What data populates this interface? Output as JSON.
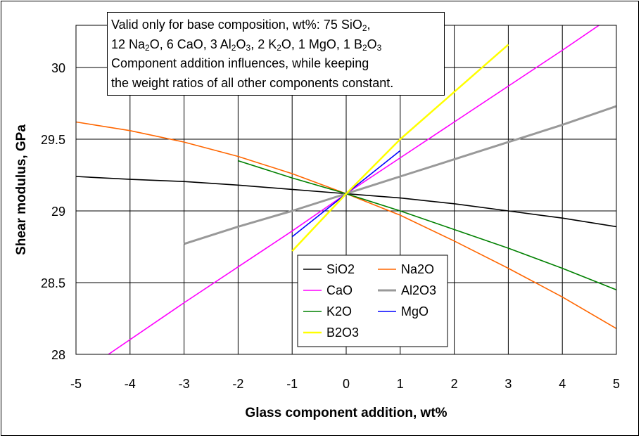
{
  "chart_data": {
    "type": "line",
    "xlabel": "Glass component addition, wt%",
    "ylabel": "Shear modulus, GPa",
    "xlim": [
      -5,
      5
    ],
    "ylim": [
      28,
      30.3
    ],
    "x_ticks": [
      "-5",
      "-4",
      "-3",
      "-2",
      "-1",
      "0",
      "1",
      "2",
      "3",
      "4",
      "5"
    ],
    "y_ticks": [
      "28",
      "28.5",
      "29",
      "29.5",
      "30"
    ],
    "grid": true,
    "legend_position": "bottom-center",
    "series": [
      {
        "name": "SiO2",
        "color": "#000000",
        "x": [
          -5,
          -4,
          -3,
          -2,
          -1,
          0,
          1,
          2,
          3,
          4,
          5
        ],
        "y": [
          29.24,
          29.22,
          29.205,
          29.18,
          29.15,
          29.12,
          29.09,
          29.05,
          29.0,
          28.95,
          28.89
        ]
      },
      {
        "name": "Na2O",
        "color": "#ff6600",
        "x": [
          -5,
          -4,
          -3,
          -2,
          -1,
          0,
          1,
          2,
          3,
          4,
          5
        ],
        "y": [
          29.62,
          29.56,
          29.48,
          29.38,
          29.26,
          29.12,
          28.97,
          28.79,
          28.6,
          28.4,
          28.18
        ]
      },
      {
        "name": "CaO",
        "color": "#ff00ff",
        "x": [
          -4.4,
          -3,
          -2,
          -1,
          0,
          1,
          2,
          3,
          4,
          4.7
        ],
        "y": [
          28.0,
          28.36,
          28.61,
          28.86,
          29.12,
          29.37,
          29.62,
          29.87,
          30.12,
          30.3
        ]
      },
      {
        "name": "Al2O3",
        "color": "#999999",
        "x": [
          -3,
          -2,
          -1,
          0,
          1,
          2,
          3,
          4,
          5
        ],
        "y": [
          28.77,
          28.89,
          29.0,
          29.12,
          29.24,
          29.36,
          29.48,
          29.6,
          29.73
        ]
      },
      {
        "name": "K2O",
        "color": "#008000",
        "x": [
          -2,
          -1,
          0,
          1,
          2,
          3,
          4,
          5
        ],
        "y": [
          29.35,
          29.23,
          29.12,
          29.0,
          28.87,
          28.74,
          28.6,
          28.45
        ]
      },
      {
        "name": "MgO",
        "color": "#0000ff",
        "x": [
          -1,
          0,
          1
        ],
        "y": [
          28.82,
          29.12,
          29.42
        ]
      },
      {
        "name": "B2O3",
        "color": "#ffff00",
        "x": [
          -1,
          0,
          1,
          2,
          3
        ],
        "y": [
          28.72,
          29.12,
          29.5,
          29.83,
          30.16
        ]
      }
    ],
    "annotation": {
      "lines": [
        {
          "parts": [
            {
              "t": "Valid only for base composition, wt%: 75 SiO"
            },
            {
              "t": "2",
              "sub": true
            },
            {
              "t": ","
            }
          ]
        },
        {
          "parts": [
            {
              "t": "12 Na"
            },
            {
              "t": "2",
              "sub": true
            },
            {
              "t": "O, 6 CaO, 3 Al"
            },
            {
              "t": "2",
              "sub": true
            },
            {
              "t": "O"
            },
            {
              "t": "3",
              "sub": true
            },
            {
              "t": ", 2 K"
            },
            {
              "t": "2",
              "sub": true
            },
            {
              "t": "O, 1 MgO, 1 B"
            },
            {
              "t": "2",
              "sub": true
            },
            {
              "t": "O"
            },
            {
              "t": "3",
              "sub": true
            }
          ]
        },
        {
          "parts": [
            {
              "t": "Component addition influences, while keeping"
            }
          ]
        },
        {
          "parts": [
            {
              "t": "the weight ratios of all other components constant."
            }
          ]
        }
      ]
    }
  }
}
